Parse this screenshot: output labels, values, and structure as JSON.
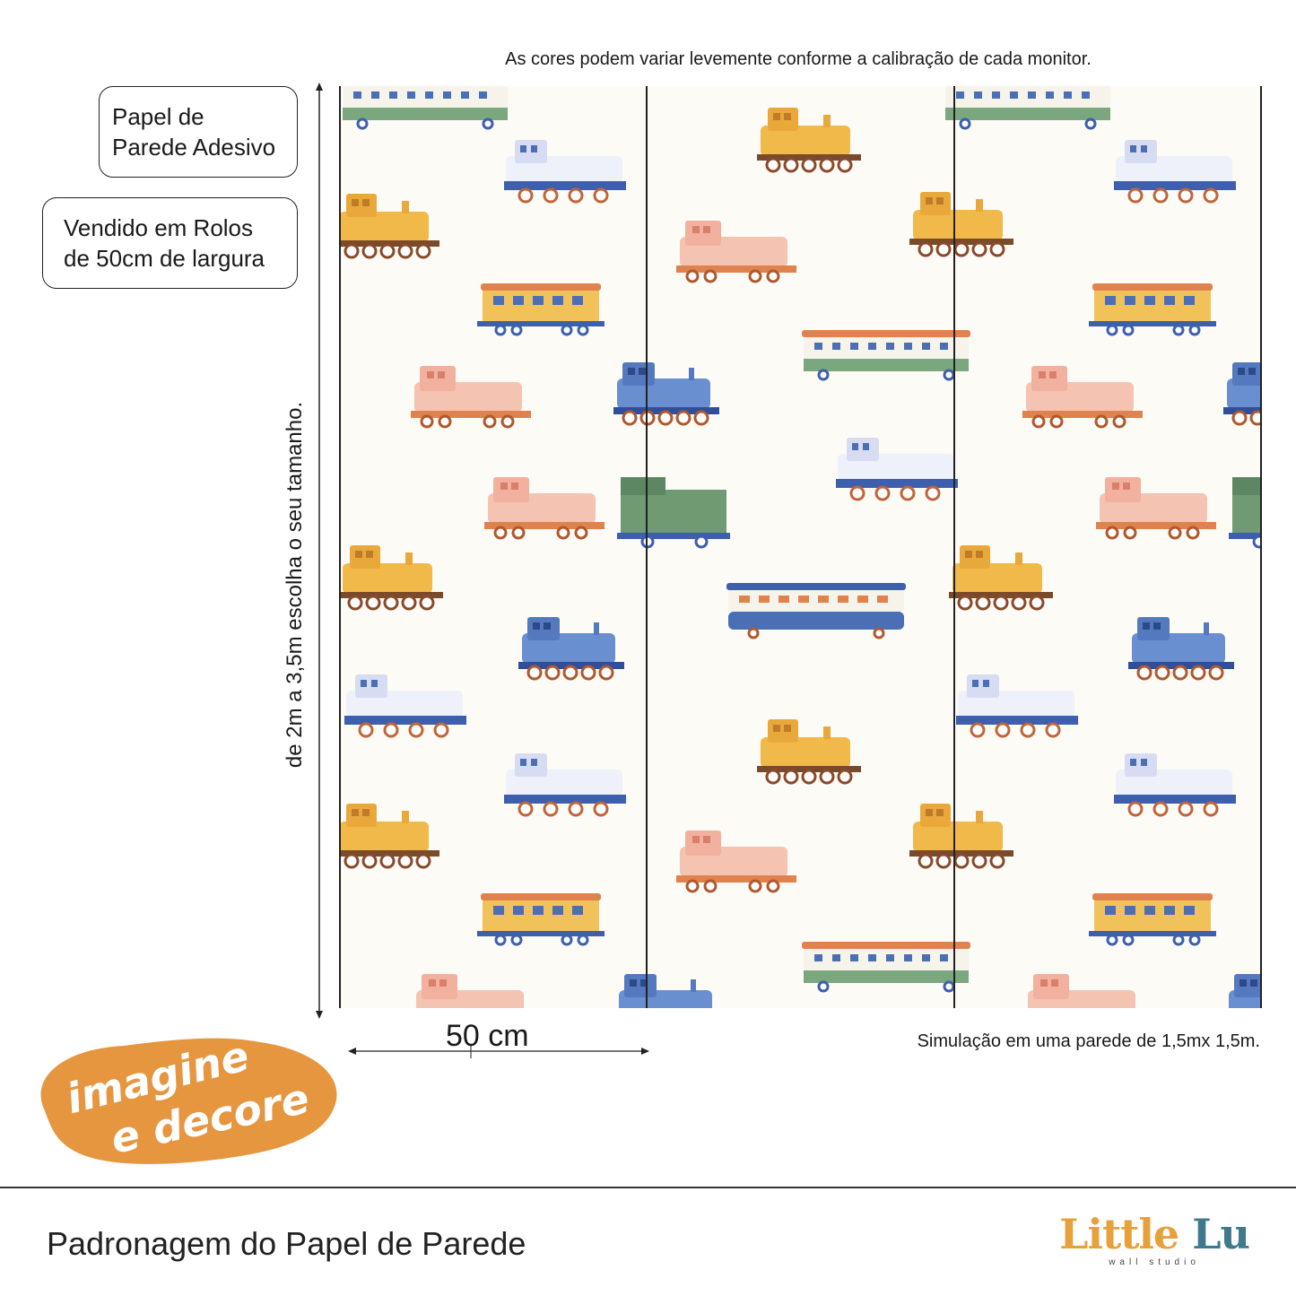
{
  "disclaimer": "As cores podem variar levemente conforme a calibração de cada monitor.",
  "info_boxes": {
    "adhesive_line1": "Papel de",
    "adhesive_line2": "Parede Adesivo",
    "sold_line1": "Vendido em Rolos",
    "sold_line2": "de 50cm de largura"
  },
  "height_label": "de 2m a 3,5m escolha o seu tamanho.",
  "width_label": "50 cm",
  "simulation_note": "Simulação em uma parede de 1,5mx 1,5m.",
  "logo": {
    "line1": "imagine",
    "line2": "e decore",
    "color": "#e5963f"
  },
  "footer": {
    "title": "Padronagem do Papel de Parede",
    "brand_part1": "Little",
    "brand_part2": "Lu",
    "brand_sub": "wall studio"
  },
  "colors": {
    "yellow": "#f1b84a",
    "blue": "#4a6fb5",
    "pink": "#f2b19e",
    "green": "#6f9a72",
    "orange": "#e0824e",
    "lilac": "#d8dcf2",
    "brown": "#7a4b2a"
  }
}
